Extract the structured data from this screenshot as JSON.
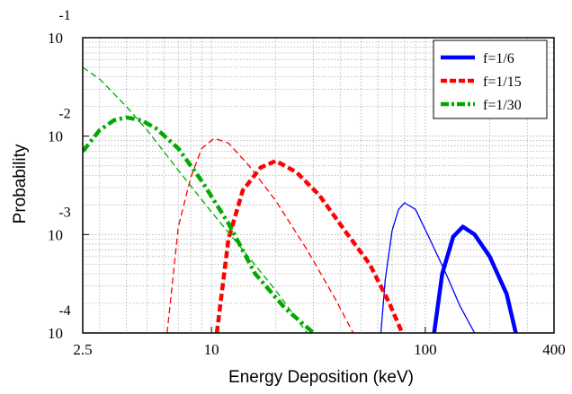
{
  "chart_data": {
    "type": "line",
    "xlabel": "Energy Deposition (keV)",
    "ylabel": "Probability",
    "xscale": "log",
    "yscale": "log",
    "xlim": [
      2.5,
      400
    ],
    "ylim": [
      0.0001,
      0.1
    ],
    "grid": true,
    "legend_position": "top-right",
    "x_tick_labels": [
      "2.5",
      "10",
      "100",
      "400"
    ],
    "y_tick_labels": [
      {
        "base": "10",
        "exp": "-1"
      },
      {
        "base": "10",
        "exp": "-2"
      },
      {
        "base": "10",
        "exp": "-3"
      },
      {
        "base": "10",
        "exp": "-4"
      }
    ],
    "series": [
      {
        "name": "f=1/6",
        "color": "#0000ff",
        "dash": "solid",
        "weight": "thick",
        "x": [
          110,
          120,
          135,
          150,
          170,
          200,
          240,
          265
        ],
        "y": [
          0.0001,
          0.0004,
          0.00095,
          0.0012,
          0.001,
          0.0006,
          0.00025,
          0.0001
        ]
      },
      {
        "name": "",
        "color": "#0000ff",
        "dash": "solid",
        "weight": "thin",
        "x": [
          62,
          65,
          70,
          75,
          80,
          90,
          105,
          125,
          145,
          170
        ],
        "y": [
          0.0001,
          0.00035,
          0.0011,
          0.0018,
          0.0021,
          0.0018,
          0.0009,
          0.0004,
          0.00019,
          0.0001
        ]
      },
      {
        "name": "f=1/15",
        "color": "#ff0000",
        "dash": "dash",
        "weight": "thick",
        "x": [
          10.6,
          12,
          14,
          17,
          20,
          25,
          32,
          42,
          55,
          68,
          78
        ],
        "y": [
          0.0001,
          0.0009,
          0.0028,
          0.0048,
          0.0056,
          0.0043,
          0.0025,
          0.0011,
          0.0005,
          0.0002,
          0.0001
        ]
      },
      {
        "name": "",
        "color": "#ff0000",
        "dash": "dash",
        "weight": "thin",
        "x": [
          6.2,
          7,
          8,
          9,
          10.3,
          12,
          15,
          20,
          28,
          38,
          46
        ],
        "y": [
          0.0001,
          0.0012,
          0.0038,
          0.0075,
          0.0095,
          0.0085,
          0.005,
          0.0022,
          0.0007,
          0.00022,
          0.0001
        ]
      },
      {
        "name": "f=1/30",
        "color": "#00aa00",
        "dash": "dashdot",
        "weight": "thick",
        "x": [
          2.5,
          3,
          3.5,
          4,
          4.7,
          5.5,
          7,
          9,
          12,
          16,
          22,
          30
        ],
        "y": [
          0.007,
          0.0115,
          0.0145,
          0.0155,
          0.0145,
          0.012,
          0.0075,
          0.0035,
          0.0013,
          0.0004,
          0.00018,
          0.0001
        ]
      },
      {
        "name": "",
        "color": "#00aa00",
        "dash": "dash",
        "weight": "thin",
        "x": [
          2.5,
          3,
          4,
          5,
          7,
          10,
          14,
          20,
          28
        ],
        "y": [
          0.05,
          0.038,
          0.02,
          0.0115,
          0.0045,
          0.0017,
          0.0007,
          0.00027,
          0.0001
        ]
      }
    ],
    "legend": [
      {
        "label": "f=1/6",
        "color": "#0000ff",
        "dash": "solid"
      },
      {
        "label": "f=1/15",
        "color": "#ff0000",
        "dash": "dash"
      },
      {
        "label": "f=1/30",
        "color": "#00aa00",
        "dash": "dashdot"
      }
    ]
  }
}
